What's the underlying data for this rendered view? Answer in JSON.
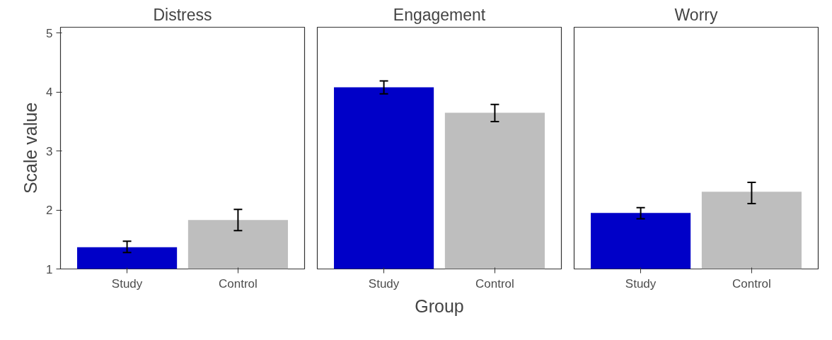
{
  "chart_data": [
    {
      "type": "bar",
      "title": "Distress",
      "ylabel": "Scale value",
      "categories": [
        "Study",
        "Control"
      ],
      "values": [
        1.37,
        1.83
      ],
      "colors": [
        "#0000c8",
        "#bebebe"
      ],
      "errors": [
        [
          1.28,
          1.47
        ],
        [
          1.65,
          2.01
        ]
      ],
      "ylim": [
        1,
        5.1
      ],
      "yticks": [
        1,
        2,
        3,
        4,
        5
      ]
    },
    {
      "type": "bar",
      "title": "Engagement",
      "xlabel": "Group",
      "categories": [
        "Study",
        "Control"
      ],
      "values": [
        4.08,
        3.65
      ],
      "colors": [
        "#0000c8",
        "#bebebe"
      ],
      "errors": [
        [
          3.97,
          4.19
        ],
        [
          3.5,
          3.79
        ]
      ],
      "ylim": [
        1,
        5.1
      ],
      "yticks": [
        1,
        2,
        3,
        4,
        5
      ],
      "tick_labels": "x"
    },
    {
      "type": "bar",
      "title": "Worry",
      "categories": [
        "Study",
        "Control"
      ],
      "values": [
        1.95,
        2.31
      ],
      "colors": [
        "#0000c8",
        "#bebebe"
      ],
      "errors": [
        [
          1.85,
          2.04
        ],
        [
          2.11,
          2.47
        ]
      ],
      "ylim": [
        1,
        5.1
      ],
      "yticks": [
        1,
        2,
        3,
        4,
        5
      ],
      "tick_labels": "x"
    }
  ]
}
